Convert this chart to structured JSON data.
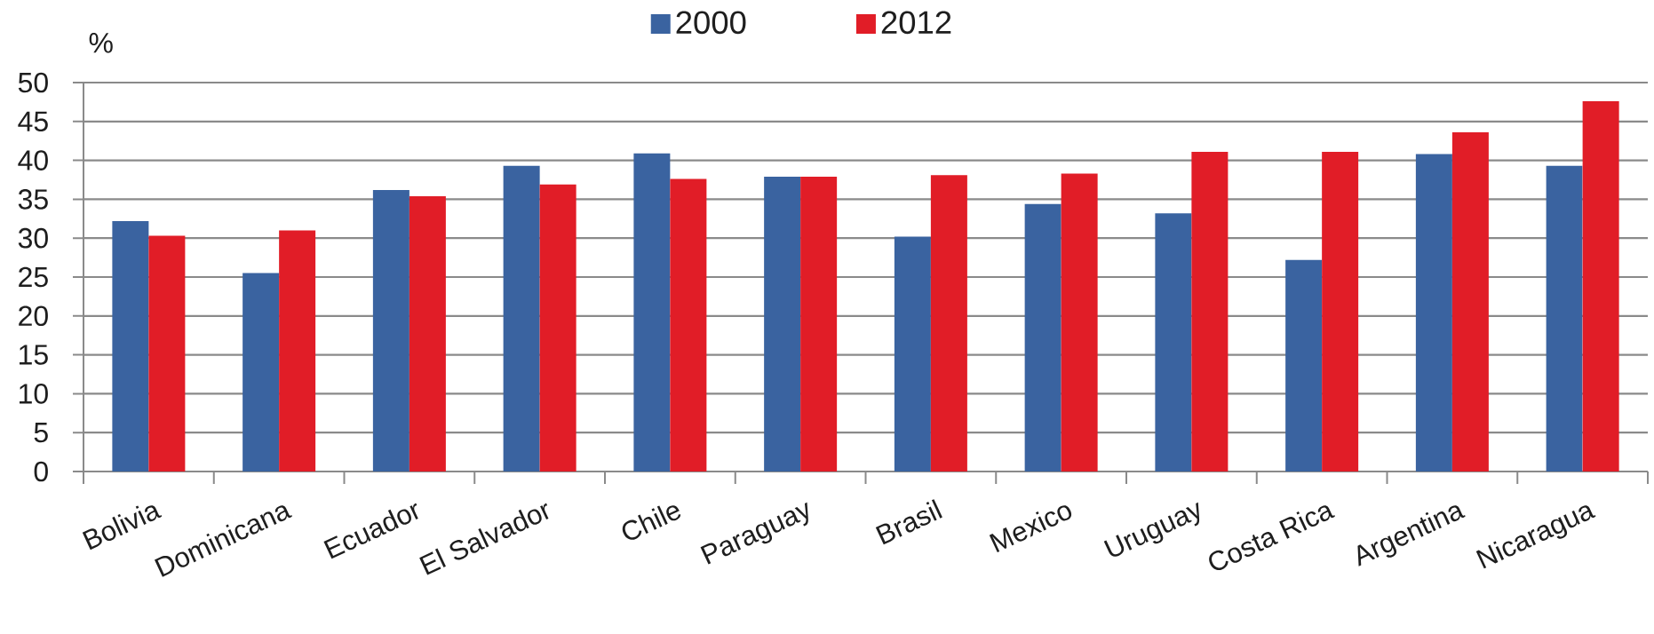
{
  "chart_data": {
    "type": "bar",
    "ylabel": "%",
    "categories": [
      "Bolivia",
      "Dominicana",
      "Ecuador",
      "El Salvador",
      "Chile",
      "Paraguay",
      "Brasil",
      "Mexico",
      "Uruguay",
      "Costa Rica",
      "Argentina",
      "Nicaragua"
    ],
    "series": [
      {
        "name": "2000",
        "color": "#3a63a0",
        "values": [
          32.2,
          25.5,
          36.2,
          39.3,
          40.9,
          37.9,
          30.2,
          34.4,
          33.2,
          27.2,
          40.8,
          39.3
        ]
      },
      {
        "name": "2012",
        "color": "#e11d27",
        "values": [
          30.3,
          31.0,
          35.4,
          36.9,
          37.6,
          37.9,
          38.1,
          38.3,
          41.1,
          41.1,
          43.6,
          47.6
        ]
      }
    ],
    "ylim": [
      0,
      50
    ],
    "yticks": [
      0,
      5,
      10,
      15,
      20,
      25,
      30,
      35,
      40,
      45,
      50
    ],
    "grid": "y",
    "legend": "top"
  }
}
